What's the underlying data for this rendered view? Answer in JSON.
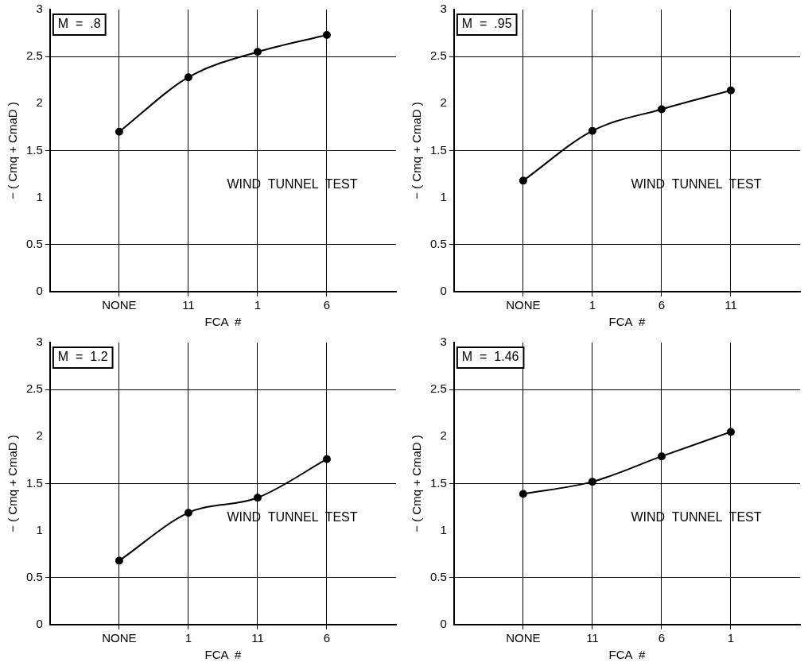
{
  "chart_data": [
    {
      "type": "line",
      "xlabel": "FCA  #",
      "ylabel": "− ( Cmq + CmaD )",
      "categories": [
        null,
        "NONE",
        "11",
        "1",
        "6",
        null
      ],
      "series": [
        {
          "color": "#000000",
          "values": [
            null,
            1.7,
            2.28,
            2.55,
            2.73,
            null
          ]
        }
      ],
      "ylim": [
        0,
        3
      ],
      "yticks": [
        0,
        0.5,
        1,
        1.5,
        2,
        2.5,
        3
      ],
      "grid": true,
      "legend": false,
      "marker": "circle",
      "line_style": "solid",
      "annotations": [
        "M  =  .8",
        "WIND  TUNNEL  TEST"
      ]
    },
    {
      "type": "line",
      "xlabel": "FCA  #",
      "ylabel": "− ( Cmq + CmaD )",
      "categories": [
        null,
        "NONE",
        "1",
        "6",
        "11",
        null
      ],
      "series": [
        {
          "color": "#000000",
          "values": [
            null,
            1.18,
            1.71,
            1.94,
            2.14,
            null
          ]
        }
      ],
      "ylim": [
        0,
        3
      ],
      "yticks": [
        0,
        0.5,
        1,
        1.5,
        2,
        2.5,
        3
      ],
      "grid": true,
      "legend": false,
      "marker": "circle",
      "line_style": "solid",
      "annotations": [
        "M  =  .95",
        "WIND  TUNNEL  TEST"
      ]
    },
    {
      "type": "line",
      "xlabel": "FCA  #",
      "ylabel": "− ( Cmq + CmaD )",
      "categories": [
        null,
        "NONE",
        "1",
        "11",
        "6",
        null
      ],
      "series": [
        {
          "color": "#000000",
          "values": [
            null,
            0.68,
            1.19,
            1.35,
            1.76,
            null
          ]
        }
      ],
      "ylim": [
        0,
        3
      ],
      "yticks": [
        0,
        0.5,
        1,
        1.5,
        2,
        2.5,
        3
      ],
      "grid": true,
      "legend": false,
      "marker": "circle",
      "line_style": "solid",
      "annotations": [
        "M  =  1.2",
        "WIND  TUNNEL  TEST"
      ]
    },
    {
      "type": "line",
      "xlabel": "FCA  #",
      "ylabel": "− ( Cmq + CmaD )",
      "categories": [
        null,
        "NONE",
        "11",
        "6",
        "1",
        null
      ],
      "series": [
        {
          "color": "#000000",
          "values": [
            null,
            1.39,
            1.52,
            1.79,
            2.05,
            null
          ]
        }
      ],
      "ylim": [
        0,
        3
      ],
      "yticks": [
        0,
        0.5,
        1,
        1.5,
        2,
        2.5,
        3
      ],
      "grid": true,
      "legend": false,
      "marker": "circle",
      "line_style": "solid",
      "annotations": [
        "M  =  1.46",
        "WIND  TUNNEL  TEST"
      ]
    }
  ]
}
